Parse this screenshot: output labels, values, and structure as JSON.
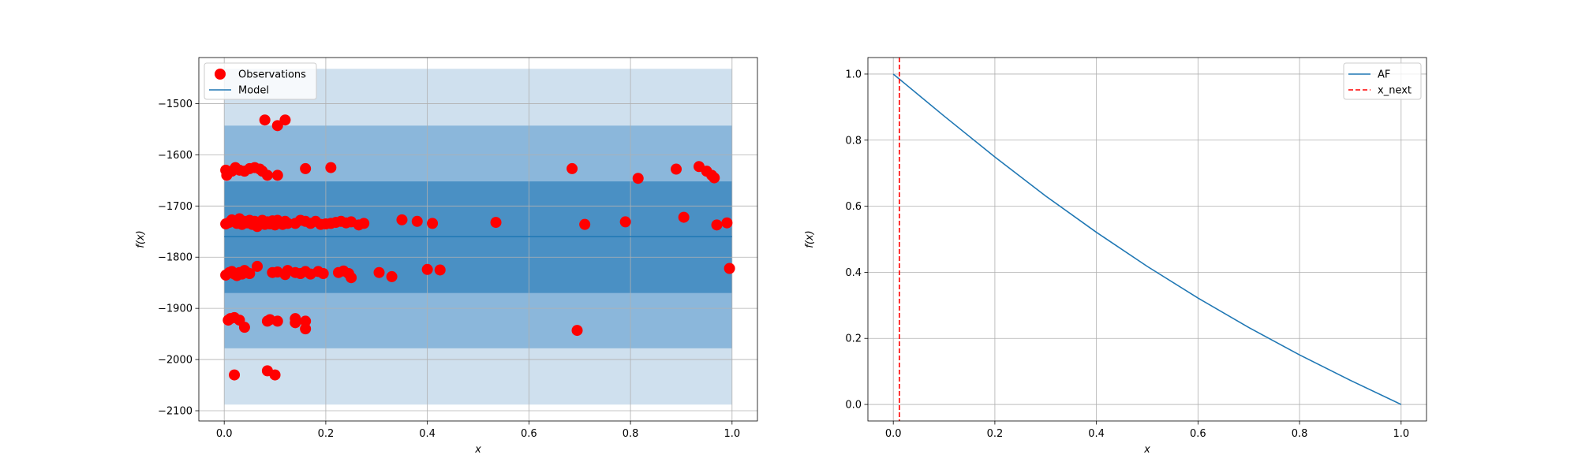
{
  "chart_data": [
    {
      "type": "scatter",
      "xlabel": "x",
      "ylabel": "f(x)",
      "xlim": [
        -0.05,
        1.05
      ],
      "ylim": [
        -2120,
        -1410
      ],
      "xticks": [
        0.0,
        0.2,
        0.4,
        0.6,
        0.8,
        1.0
      ],
      "xtick_labels": [
        "0.0",
        "0.2",
        "0.4",
        "0.6",
        "0.8",
        "1.0"
      ],
      "yticks": [
        -2100,
        -2000,
        -1900,
        -1800,
        -1700,
        -1600,
        -1500
      ],
      "ytick_labels": [
        "−2100",
        "−2000",
        "−1900",
        "−1800",
        "−1700",
        "−1600",
        "−1500"
      ],
      "grid": true,
      "legend_position": "top-left",
      "legend": [
        "Observations",
        "Model"
      ],
      "colors": {
        "observations": "#ff0000",
        "model": "#1f77b4",
        "band_outer": "#cfe0ee",
        "band_middle": "#8bb7db",
        "band_inner": "#4a90c4"
      },
      "model": {
        "x": [
          0.0,
          1.0
        ],
        "y": [
          -1760,
          -1760
        ]
      },
      "bands": [
        {
          "lower": -2088,
          "upper": -1432
        },
        {
          "lower": -1978,
          "upper": -1543
        },
        {
          "lower": -1870,
          "upper": -1652
        }
      ],
      "observations": [
        [
          0.003,
          -1630
        ],
        [
          0.005,
          -1640
        ],
        [
          0.015,
          -1632
        ],
        [
          0.022,
          -1625
        ],
        [
          0.03,
          -1630
        ],
        [
          0.04,
          -1632
        ],
        [
          0.05,
          -1627
        ],
        [
          0.06,
          -1625
        ],
        [
          0.07,
          -1628
        ],
        [
          0.075,
          -1632
        ],
        [
          0.085,
          -1640
        ],
        [
          0.105,
          -1640
        ],
        [
          0.16,
          -1627
        ],
        [
          0.21,
          -1625
        ],
        [
          0.685,
          -1627
        ],
        [
          0.815,
          -1646
        ],
        [
          0.89,
          -1628
        ],
        [
          0.935,
          -1623
        ],
        [
          0.95,
          -1632
        ],
        [
          0.96,
          -1640
        ],
        [
          0.965,
          -1645
        ],
        [
          0.08,
          -1532
        ],
        [
          0.105,
          -1543
        ],
        [
          0.12,
          -1532
        ],
        [
          0.003,
          -1735
        ],
        [
          0.01,
          -1732
        ],
        [
          0.015,
          -1727
        ],
        [
          0.02,
          -1730
        ],
        [
          0.025,
          -1734
        ],
        [
          0.03,
          -1725
        ],
        [
          0.035,
          -1736
        ],
        [
          0.04,
          -1730
        ],
        [
          0.045,
          -1733
        ],
        [
          0.05,
          -1728
        ],
        [
          0.055,
          -1736
        ],
        [
          0.06,
          -1730
        ],
        [
          0.065,
          -1740
        ],
        [
          0.07,
          -1733
        ],
        [
          0.075,
          -1728
        ],
        [
          0.08,
          -1736
        ],
        [
          0.085,
          -1731
        ],
        [
          0.09,
          -1735
        ],
        [
          0.095,
          -1729
        ],
        [
          0.1,
          -1737
        ],
        [
          0.105,
          -1728
        ],
        [
          0.11,
          -1733
        ],
        [
          0.115,
          -1736
        ],
        [
          0.12,
          -1730
        ],
        [
          0.125,
          -1734
        ],
        [
          0.14,
          -1734
        ],
        [
          0.15,
          -1728
        ],
        [
          0.16,
          -1730
        ],
        [
          0.17,
          -1734
        ],
        [
          0.18,
          -1730
        ],
        [
          0.19,
          -1736
        ],
        [
          0.2,
          -1735
        ],
        [
          0.21,
          -1734
        ],
        [
          0.22,
          -1732
        ],
        [
          0.23,
          -1730
        ],
        [
          0.24,
          -1733
        ],
        [
          0.25,
          -1731
        ],
        [
          0.265,
          -1737
        ],
        [
          0.275,
          -1734
        ],
        [
          0.35,
          -1727
        ],
        [
          0.38,
          -1730
        ],
        [
          0.41,
          -1734
        ],
        [
          0.535,
          -1732
        ],
        [
          0.71,
          -1736
        ],
        [
          0.79,
          -1731
        ],
        [
          0.905,
          -1722
        ],
        [
          0.97,
          -1737
        ],
        [
          0.99,
          -1733
        ],
        [
          0.003,
          -1835
        ],
        [
          0.01,
          -1830
        ],
        [
          0.015,
          -1828
        ],
        [
          0.02,
          -1833
        ],
        [
          0.025,
          -1836
        ],
        [
          0.03,
          -1830
        ],
        [
          0.035,
          -1833
        ],
        [
          0.04,
          -1826
        ],
        [
          0.045,
          -1830
        ],
        [
          0.05,
          -1832
        ],
        [
          0.065,
          -1818
        ],
        [
          0.095,
          -1830
        ],
        [
          0.105,
          -1829
        ],
        [
          0.12,
          -1834
        ],
        [
          0.125,
          -1826
        ],
        [
          0.14,
          -1830
        ],
        [
          0.15,
          -1832
        ],
        [
          0.16,
          -1828
        ],
        [
          0.17,
          -1833
        ],
        [
          0.185,
          -1828
        ],
        [
          0.195,
          -1832
        ],
        [
          0.225,
          -1830
        ],
        [
          0.235,
          -1827
        ],
        [
          0.245,
          -1832
        ],
        [
          0.25,
          -1840
        ],
        [
          0.305,
          -1830
        ],
        [
          0.33,
          -1838
        ],
        [
          0.4,
          -1824
        ],
        [
          0.425,
          -1825
        ],
        [
          0.995,
          -1822
        ],
        [
          0.008,
          -1923
        ],
        [
          0.012,
          -1920
        ],
        [
          0.02,
          -1918
        ],
        [
          0.03,
          -1923
        ],
        [
          0.04,
          -1937
        ],
        [
          0.085,
          -1925
        ],
        [
          0.09,
          -1922
        ],
        [
          0.105,
          -1925
        ],
        [
          0.14,
          -1920
        ],
        [
          0.14,
          -1928
        ],
        [
          0.16,
          -1925
        ],
        [
          0.16,
          -1940
        ],
        [
          0.695,
          -1943
        ],
        [
          0.02,
          -2030
        ],
        [
          0.085,
          -2022
        ],
        [
          0.1,
          -2030
        ]
      ]
    },
    {
      "type": "line",
      "xlabel": "x",
      "ylabel": "f(x)",
      "xlim": [
        -0.05,
        1.05
      ],
      "ylim": [
        -0.05,
        1.05
      ],
      "xticks": [
        0.0,
        0.2,
        0.4,
        0.6,
        0.8,
        1.0
      ],
      "xtick_labels": [
        "0.0",
        "0.2",
        "0.4",
        "0.6",
        "0.8",
        "1.0"
      ],
      "yticks": [
        0.0,
        0.2,
        0.4,
        0.6,
        0.8,
        1.0
      ],
      "ytick_labels": [
        "0.0",
        "0.2",
        "0.4",
        "0.6",
        "0.8",
        "1.0"
      ],
      "grid": true,
      "legend_position": "top-right",
      "legend": [
        "AF",
        "x_next"
      ],
      "colors": {
        "af": "#1f77b4",
        "x_next": "#ff0000"
      },
      "af": {
        "x": [
          0.0,
          0.1,
          0.2,
          0.3,
          0.4,
          0.5,
          0.6,
          0.7,
          0.8,
          0.9,
          1.0
        ],
        "y": [
          1.0,
          0.873,
          0.749,
          0.631,
          0.521,
          0.418,
          0.322,
          0.233,
          0.15,
          0.073,
          0.0
        ]
      },
      "x_next": 0.012
    }
  ]
}
